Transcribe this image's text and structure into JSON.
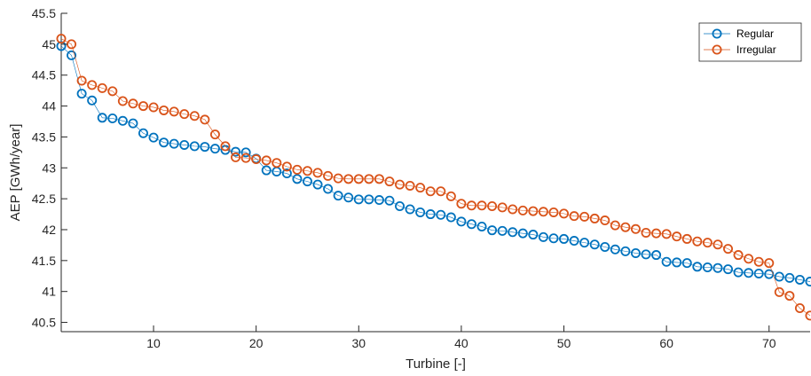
{
  "chart_data": {
    "type": "line",
    "xlabel": "Turbine [-]",
    "ylabel": "AEP [GWh/year]",
    "xlim": [
      1,
      74
    ],
    "ylim": [
      40.35,
      45.5
    ],
    "xticks": [
      10,
      20,
      30,
      40,
      50,
      60,
      70
    ],
    "yticks": [
      40.5,
      41,
      41.5,
      42,
      42.5,
      43,
      43.5,
      44,
      44.5,
      45,
      45.5
    ],
    "ytick_labels": [
      "40.5",
      "41",
      "41.5",
      "42",
      "42.5",
      "43",
      "43.5",
      "44",
      "44.5",
      "45",
      "45.5"
    ],
    "grid": false,
    "legend_position": "top-right",
    "x": [
      1,
      2,
      3,
      4,
      5,
      6,
      7,
      8,
      9,
      10,
      11,
      12,
      13,
      14,
      15,
      16,
      17,
      18,
      19,
      20,
      21,
      22,
      23,
      24,
      25,
      26,
      27,
      28,
      29,
      30,
      31,
      32,
      33,
      34,
      35,
      36,
      37,
      38,
      39,
      40,
      41,
      42,
      43,
      44,
      45,
      46,
      47,
      48,
      49,
      50,
      51,
      52,
      53,
      54,
      55,
      56,
      57,
      58,
      59,
      60,
      61,
      62,
      63,
      64,
      65,
      66,
      67,
      68,
      69,
      70,
      71,
      72,
      73,
      74
    ],
    "series": [
      {
        "name": "Regular",
        "color": "#0072BD",
        "values": [
          44.97,
          44.82,
          44.2,
          44.09,
          43.81,
          43.8,
          43.76,
          43.72,
          43.56,
          43.49,
          43.41,
          43.39,
          43.37,
          43.35,
          43.34,
          43.31,
          43.29,
          43.26,
          43.25,
          43.15,
          42.96,
          42.94,
          42.91,
          42.82,
          42.78,
          42.73,
          42.66,
          42.55,
          42.52,
          42.49,
          42.49,
          42.48,
          42.47,
          42.38,
          42.33,
          42.28,
          42.25,
          42.24,
          42.2,
          42.13,
          42.09,
          42.05,
          41.99,
          41.98,
          41.96,
          41.94,
          41.92,
          41.88,
          41.86,
          41.85,
          41.82,
          41.79,
          41.76,
          41.72,
          41.68,
          41.65,
          41.62,
          41.6,
          41.59,
          41.48,
          41.47,
          41.46,
          41.4,
          41.39,
          41.38,
          41.36,
          41.31,
          41.3,
          41.29,
          41.28,
          41.24,
          41.22,
          41.19,
          41.16
        ]
      },
      {
        "name": "Irregular",
        "color": "#D95319",
        "values": [
          45.09,
          45.0,
          44.41,
          44.34,
          44.29,
          44.24,
          44.08,
          44.04,
          44.0,
          43.98,
          43.93,
          43.91,
          43.87,
          43.84,
          43.78,
          43.54,
          43.35,
          43.17,
          43.16,
          43.14,
          43.12,
          43.08,
          43.02,
          42.97,
          42.95,
          42.92,
          42.87,
          42.83,
          42.82,
          42.82,
          42.82,
          42.82,
          42.78,
          42.73,
          42.71,
          42.68,
          42.62,
          42.62,
          42.54,
          42.42,
          42.39,
          42.39,
          42.38,
          42.36,
          42.33,
          42.31,
          42.3,
          42.29,
          42.28,
          42.26,
          42.22,
          42.21,
          42.18,
          42.15,
          42.07,
          42.04,
          42.01,
          41.95,
          41.94,
          41.93,
          41.89,
          41.85,
          41.81,
          41.79,
          41.76,
          41.69,
          41.59,
          41.53,
          41.48,
          41.46,
          40.99,
          40.93,
          40.73,
          40.61
        ]
      }
    ]
  }
}
